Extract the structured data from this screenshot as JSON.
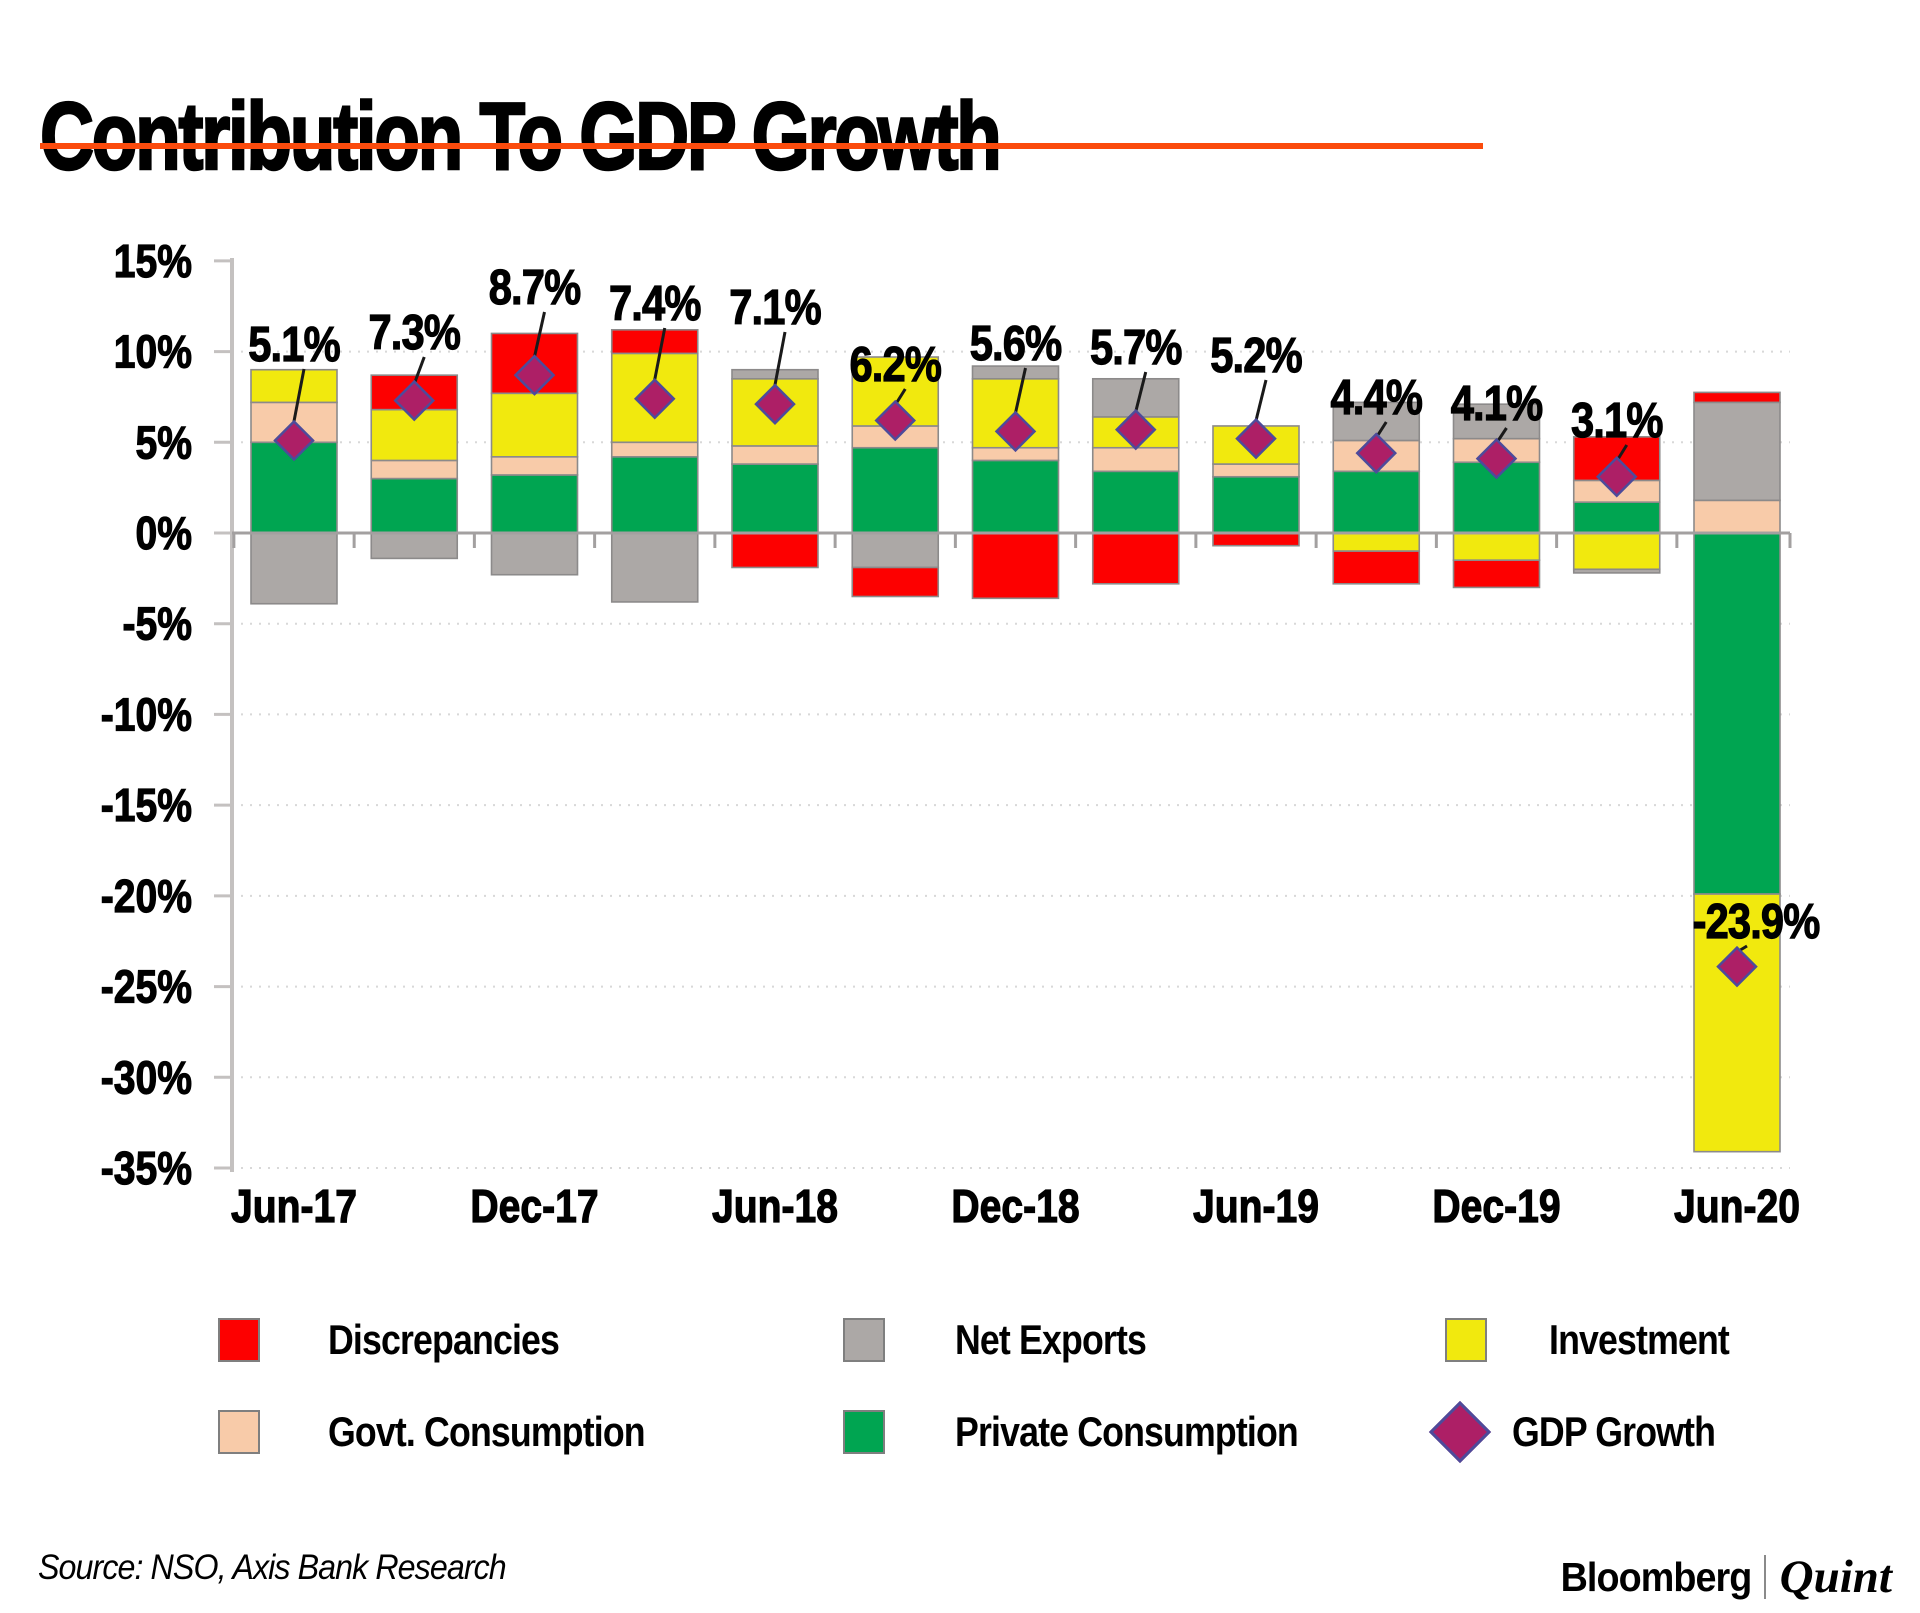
{
  "title": "Contribution To GDP Growth",
  "accent_rule_color": "#FB4B0D",
  "chart_data": {
    "type": "bar",
    "subtype": "stacked-bar-with-scatter-markers",
    "title": "Contribution To GDP Growth",
    "xlabel": "",
    "ylabel": "",
    "ylim": [
      -35,
      15
    ],
    "ytick_step": 5,
    "ytick_labels": [
      "15%",
      "10%",
      "5%",
      "0%",
      "-5%",
      "-10%",
      "-15%",
      "-20%",
      "-25%",
      "-30%",
      "-35%"
    ],
    "grid": "dashed horizontal gridlines every 5%, solid zero line",
    "legend_position": "bottom",
    "categories": [
      "Jun-17",
      "Sep-17",
      "Dec-17",
      "Mar-18",
      "Jun-18",
      "Sep-18",
      "Dec-18",
      "Mar-19",
      "Jun-19",
      "Sep-19",
      "Dec-19",
      "Mar-20",
      "Jun-20"
    ],
    "x_axis_shown_labels": [
      "Jun-17",
      "Dec-17",
      "Jun-18",
      "Dec-18",
      "Jun-19",
      "Dec-19",
      "Jun-20"
    ],
    "series": [
      {
        "name": "Private Consumption",
        "color": "#00A551",
        "values": [
          5.0,
          3.0,
          3.2,
          4.2,
          3.8,
          4.7,
          4.0,
          3.4,
          3.1,
          3.4,
          3.9,
          1.7,
          -19.9
        ]
      },
      {
        "name": "Govt. Consumption",
        "color": "#F8CBA9",
        "values": [
          2.2,
          1.0,
          1.0,
          0.8,
          1.0,
          1.2,
          0.7,
          1.3,
          0.7,
          1.7,
          1.3,
          1.2,
          1.8
        ]
      },
      {
        "name": "Investment",
        "color": "#F1E90E",
        "values": [
          1.8,
          2.8,
          3.5,
          4.9,
          3.7,
          3.8,
          3.8,
          1.7,
          2.1,
          -1.0,
          -1.5,
          -2.0,
          -14.2
        ]
      },
      {
        "name": "Net Exports",
        "color": "#ACA8A6",
        "values": [
          -3.9,
          -1.4,
          -2.3,
          -3.8,
          0.5,
          -1.9,
          0.7,
          2.1,
          0.0,
          2.1,
          1.9,
          -0.2,
          5.4
        ]
      },
      {
        "name": "Discrepancies",
        "color": "#FD0000",
        "values": [
          0.0,
          1.9,
          3.3,
          1.3,
          -1.9,
          -1.6,
          -3.6,
          -2.8,
          -0.7,
          -1.8,
          -1.5,
          2.4,
          0.55
        ]
      }
    ],
    "marker_series": {
      "name": "GDP Growth",
      "marker": "diamond",
      "fill": "#AD1F66",
      "stroke": "#4D4B9B",
      "values": [
        5.1,
        7.3,
        8.7,
        7.4,
        7.1,
        6.2,
        5.6,
        5.7,
        5.2,
        4.4,
        4.1,
        3.1,
        -23.9
      ],
      "data_labels": [
        "5.1%",
        "7.3%",
        "8.7%",
        "7.4%",
        "7.1%",
        "6.2%",
        "5.6%",
        "5.7%",
        "5.2%",
        "4.4%",
        "4.1%",
        "3.1%",
        "-23.9%"
      ]
    }
  },
  "legend": {
    "items": [
      {
        "label": "Discrepancies",
        "color": "#FD0000",
        "shape": "rect"
      },
      {
        "label": "Net Exports",
        "color": "#ACA8A6",
        "shape": "rect"
      },
      {
        "label": "Investment",
        "color": "#F1E90E",
        "shape": "rect"
      },
      {
        "label": "Govt. Consumption",
        "color": "#F8CBA9",
        "shape": "rect"
      },
      {
        "label": "Private Consumption",
        "color": "#00A551",
        "shape": "rect"
      },
      {
        "label": "GDP Growth",
        "color": "#AD1F66",
        "shape": "diamond"
      }
    ]
  },
  "footer": {
    "source": "Source: NSO, Axis Bank Research",
    "brand_left": "Bloomberg",
    "brand_right": "Quint"
  }
}
